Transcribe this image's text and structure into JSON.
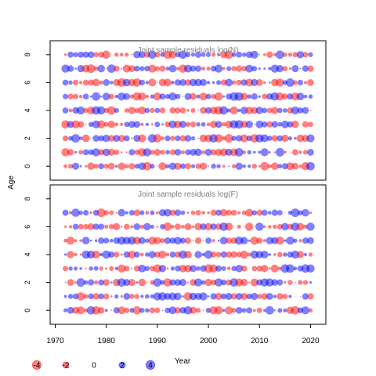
{
  "chart_data": [
    {
      "type": "scatter",
      "subtype": "bubble",
      "title": "Joint sample residuals log(N)",
      "ylabel": "Age",
      "ylim": [
        -1,
        9
      ],
      "yticks": [
        0,
        2,
        4,
        6,
        8
      ],
      "ages": [
        0,
        1,
        2,
        3,
        4,
        5,
        6,
        7,
        8
      ],
      "x_range": [
        1972,
        2020
      ],
      "positive_color": "#0000ff",
      "negative_color": "#ff0000",
      "fill_opacity": 0.5,
      "seed": 11
    },
    {
      "type": "scatter",
      "subtype": "bubble",
      "title": "Joint sample residuals log(F)",
      "xlabel": "",
      "xlim": [
        1969,
        2023
      ],
      "xticks": [
        1970,
        1980,
        1990,
        2000,
        2010,
        2020
      ],
      "ylim": [
        -1,
        9
      ],
      "yticks": [
        0,
        2,
        4,
        6,
        8
      ],
      "ages": [
        0,
        1,
        2,
        3,
        4,
        5,
        6,
        7
      ],
      "x_range": [
        1972,
        2020
      ],
      "positive_color": "#0000ff",
      "negative_color": "#ff0000",
      "fill_opacity": 0.5,
      "seed": 29
    }
  ],
  "shared_axis": {
    "ylabel": "Age",
    "xlim": [
      1969,
      2023
    ],
    "xticks": [
      1970,
      1980,
      1990,
      2000,
      2010,
      2020
    ]
  },
  "legend": {
    "title": "Year",
    "entries": [
      {
        "value": -4,
        "label": "-4",
        "color": "#ff0000"
      },
      {
        "value": -2,
        "label": "-2",
        "color": "#ff0000"
      },
      {
        "value": 0,
        "label": "0",
        "color": "#ff0000"
      },
      {
        "value": 2,
        "label": "2",
        "color": "#0000ff"
      },
      {
        "value": 4,
        "label": "4",
        "color": "#0000ff"
      }
    ]
  }
}
